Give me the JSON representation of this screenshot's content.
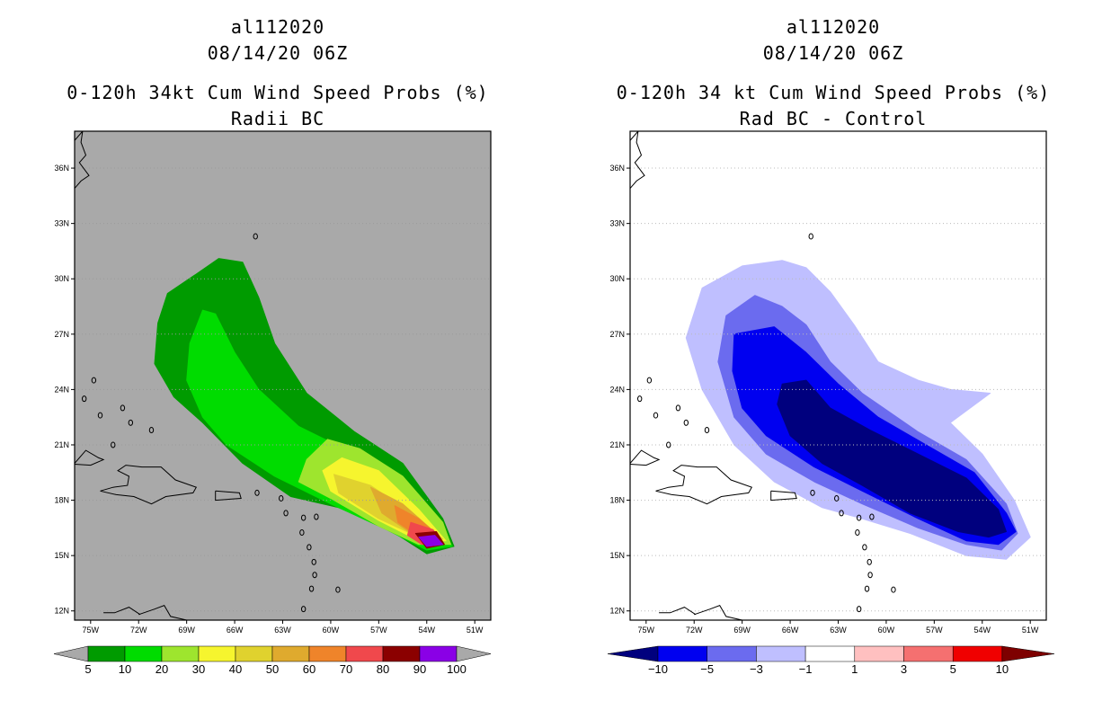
{
  "left": {
    "storm_id": "al112020",
    "datetime": "08/14/20 06Z",
    "title": "0-120h 34kt Cum Wind Speed Probs (%)",
    "subtitle": "Radii BC",
    "background_color": "#a9a9a9",
    "colorbar": {
      "labels": [
        "5",
        "10",
        "20",
        "30",
        "40",
        "50",
        "60",
        "70",
        "80",
        "90",
        "100"
      ],
      "colors": [
        "#009b00",
        "#00dc00",
        "#9ee52e",
        "#f6f52e",
        "#e0d22e",
        "#dfaa2e",
        "#ef842a",
        "#f0484c",
        "#8b0000",
        "#8a00e6"
      ],
      "extend_color": "#a9a9a9"
    }
  },
  "right": {
    "storm_id": "al112020",
    "datetime": "08/14/20 06Z",
    "title": "0-120h 34 kt Cum Wind Speed Probs (%)",
    "subtitle": "Rad BC - Control",
    "background_color": "#ffffff",
    "colorbar": {
      "labels": [
        "-10",
        "-5",
        "-3",
        "-1",
        "1",
        "3",
        "5",
        "10"
      ],
      "colors": [
        "#0000f0",
        "#6b6bef",
        "#bfbfff",
        "#ffffff",
        "#ffc0c0",
        "#f57070",
        "#f00000"
      ],
      "extend_low_color": "#00007e",
      "extend_high_color": "#7e0000"
    }
  },
  "axes": {
    "lon_labels": [
      "75W",
      "72W",
      "69W",
      "66W",
      "63W",
      "60W",
      "57W",
      "54W",
      "51W"
    ],
    "lat_labels": [
      "36N",
      "33N",
      "30N",
      "27N",
      "24N",
      "21N",
      "18N",
      "15N",
      "12N"
    ],
    "lon_range": [
      -76,
      -50
    ],
    "lat_range": [
      11.5,
      38
    ]
  },
  "chart_data": [
    {
      "type": "heatmap",
      "title": "0-120h 34kt Cum Wind Speed Probs (%)",
      "subtitle": "Radii BC",
      "levels": [
        5,
        10,
        20,
        30,
        40,
        50,
        60,
        70,
        80,
        90,
        100
      ],
      "contours": [
        {
          "level": 5,
          "lon_lat": [
            [
              -68.5,
              30.2
            ],
            [
              -67.0,
              31.1
            ],
            [
              -65.5,
              30.9
            ],
            [
              -64.5,
              29.0
            ],
            [
              -63.5,
              26.5
            ],
            [
              -61.5,
              23.8
            ],
            [
              -58.5,
              21.7
            ],
            [
              -55.5,
              20.0
            ],
            [
              -53.0,
              17.0
            ],
            [
              -52.3,
              15.5
            ],
            [
              -54.0,
              15.1
            ],
            [
              -56.5,
              16.5
            ],
            [
              -59.5,
              17.6
            ],
            [
              -62.5,
              18.2
            ],
            [
              -65.5,
              20.0
            ],
            [
              -68.0,
              22.2
            ],
            [
              -69.8,
              23.6
            ],
            [
              -71.0,
              25.4
            ],
            [
              -70.8,
              27.6
            ],
            [
              -70.2,
              29.2
            ]
          ]
        },
        {
          "level": 10,
          "lon_lat": [
            [
              -68.0,
              28.3
            ],
            [
              -67.2,
              28.1
            ],
            [
              -66.0,
              26.0
            ],
            [
              -64.5,
              24.0
            ],
            [
              -62.0,
              22.0
            ],
            [
              -58.5,
              20.5
            ],
            [
              -55.5,
              18.7
            ],
            [
              -53.0,
              16.4
            ],
            [
              -52.4,
              15.5
            ],
            [
              -54.0,
              15.3
            ],
            [
              -56.5,
              16.4
            ],
            [
              -60.0,
              17.8
            ],
            [
              -63.5,
              19.3
            ],
            [
              -66.5,
              21.0
            ],
            [
              -68.0,
              22.5
            ],
            [
              -69.0,
              24.5
            ],
            [
              -68.8,
              26.5
            ]
          ]
        },
        {
          "level": 20,
          "lon_lat": [
            [
              -60.2,
              21.3
            ],
            [
              -58.2,
              20.8
            ],
            [
              -55.5,
              19.3
            ],
            [
              -53.0,
              16.8
            ],
            [
              -52.5,
              15.6
            ],
            [
              -54.5,
              15.6
            ],
            [
              -57.0,
              16.6
            ],
            [
              -60.0,
              18.1
            ],
            [
              -62.0,
              19.0
            ],
            [
              -61.5,
              20.2
            ]
          ]
        },
        {
          "level": 30,
          "lon_lat": [
            [
              -59.3,
              20.3
            ],
            [
              -57.0,
              19.6
            ],
            [
              -54.5,
              17.5
            ],
            [
              -52.8,
              15.8
            ],
            [
              -54.5,
              15.8
            ],
            [
              -57.0,
              16.9
            ],
            [
              -60.0,
              18.5
            ],
            [
              -60.5,
              19.6
            ]
          ]
        },
        {
          "level": 40,
          "lon_lat": [
            [
              -59.8,
              19.4
            ],
            [
              -57.5,
              18.8
            ],
            [
              -55.0,
              17.3
            ],
            [
              -53.0,
              15.9
            ],
            [
              -54.5,
              16.0
            ],
            [
              -57.0,
              17.0
            ],
            [
              -59.5,
              18.4
            ]
          ]
        },
        {
          "level": 50,
          "lon_lat": [
            [
              -57.5,
              18.7
            ],
            [
              -55.5,
              17.8
            ],
            [
              -53.8,
              16.5
            ],
            [
              -53.2,
              15.9
            ],
            [
              -54.8,
              16.1
            ],
            [
              -56.8,
              17.3
            ]
          ]
        },
        {
          "level": 60,
          "lon_lat": [
            [
              -56.0,
              17.7
            ],
            [
              -54.5,
              17.0
            ],
            [
              -53.3,
              16.1
            ],
            [
              -54.5,
              16.0
            ],
            [
              -55.8,
              16.8
            ]
          ]
        },
        {
          "level": 70,
          "lon_lat": [
            [
              -55.0,
              16.8
            ],
            [
              -53.6,
              16.4
            ],
            [
              -53.1,
              15.8
            ],
            [
              -54.3,
              15.6
            ],
            [
              -55.2,
              16.1
            ]
          ]
        },
        {
          "level": 80,
          "lon_lat": [
            [
              -54.7,
              16.2
            ],
            [
              -53.4,
              16.3
            ],
            [
              -52.9,
              15.6
            ],
            [
              -54.0,
              15.4
            ]
          ]
        },
        {
          "level": 90,
          "lon_lat": [
            [
              -54.5,
              16.0
            ],
            [
              -53.5,
              16.1
            ],
            [
              -53.0,
              15.6
            ],
            [
              -54.0,
              15.5
            ]
          ]
        },
        {
          "level": 100,
          "lon_lat": [
            [
              -54.3,
              15.95
            ],
            [
              -53.5,
              16.0
            ],
            [
              -53.1,
              15.6
            ],
            [
              -54.0,
              15.5
            ]
          ]
        }
      ]
    },
    {
      "type": "heatmap",
      "title": "0-120h 34 kt Cum Wind Speed Probs (%)",
      "subtitle": "Rad BC - Control",
      "levels": [
        -10,
        -5,
        -3,
        -1,
        1,
        3,
        5,
        10
      ],
      "contours": [
        {
          "level": -1,
          "lon_lat": [
            [
              -71.5,
              29.5
            ],
            [
              -69.0,
              30.7
            ],
            [
              -66.5,
              31.0
            ],
            [
              -65.0,
              30.6
            ],
            [
              -63.5,
              29.3
            ],
            [
              -62.0,
              27.5
            ],
            [
              -60.5,
              25.5
            ],
            [
              -58.0,
              24.5
            ],
            [
              -56.0,
              24.0
            ],
            [
              -53.5,
              23.8
            ],
            [
              -56.0,
              22.2
            ],
            [
              -54.0,
              20.5
            ],
            [
              -52.0,
              18.0
            ],
            [
              -51.0,
              16.0
            ],
            [
              -52.5,
              14.8
            ],
            [
              -55.0,
              15.0
            ],
            [
              -58.5,
              16.2
            ],
            [
              -61.5,
              17.0
            ],
            [
              -64.0,
              17.6
            ],
            [
              -67.0,
              19.0
            ],
            [
              -69.5,
              21.0
            ],
            [
              -71.5,
              24.0
            ],
            [
              -72.5,
              26.8
            ]
          ]
        },
        {
          "level": -3,
          "lon_lat": [
            [
              -70.0,
              28.0
            ],
            [
              -68.2,
              29.1
            ],
            [
              -66.5,
              28.5
            ],
            [
              -65.0,
              27.5
            ],
            [
              -63.5,
              25.5
            ],
            [
              -61.5,
              23.8
            ],
            [
              -58.0,
              21.7
            ],
            [
              -55.0,
              20.2
            ],
            [
              -52.5,
              17.8
            ],
            [
              -51.8,
              16.2
            ],
            [
              -52.8,
              15.3
            ],
            [
              -55.0,
              15.6
            ],
            [
              -58.0,
              16.5
            ],
            [
              -61.5,
              17.8
            ],
            [
              -64.5,
              19.0
            ],
            [
              -67.5,
              20.5
            ],
            [
              -69.5,
              22.5
            ],
            [
              -70.5,
              25.5
            ]
          ]
        },
        {
          "level": -5,
          "lon_lat": [
            [
              -69.5,
              27.0
            ],
            [
              -67.0,
              27.4
            ],
            [
              -65.0,
              26.0
            ],
            [
              -63.0,
              24.3
            ],
            [
              -60.5,
              22.5
            ],
            [
              -57.5,
              21.0
            ],
            [
              -54.5,
              19.5
            ],
            [
              -52.5,
              17.3
            ],
            [
              -51.9,
              16.3
            ],
            [
              -53.0,
              15.6
            ],
            [
              -55.0,
              15.8
            ],
            [
              -58.0,
              17.0
            ],
            [
              -61.5,
              18.5
            ],
            [
              -64.5,
              19.8
            ],
            [
              -67.5,
              21.5
            ],
            [
              -69.0,
              23.0
            ],
            [
              -69.6,
              25.0
            ]
          ]
        },
        {
          "level": -10,
          "lon_lat": [
            [
              -66.5,
              24.3
            ],
            [
              -65.0,
              24.5
            ],
            [
              -63.5,
              23.0
            ],
            [
              -61.0,
              21.8
            ],
            [
              -58.0,
              20.5
            ],
            [
              -55.0,
              19.2
            ],
            [
              -53.0,
              17.5
            ],
            [
              -52.5,
              16.3
            ],
            [
              -53.6,
              16.0
            ],
            [
              -55.5,
              16.3
            ],
            [
              -58.5,
              17.3
            ],
            [
              -61.5,
              18.8
            ],
            [
              -64.0,
              20.0
            ],
            [
              -66.0,
              21.5
            ],
            [
              -66.8,
              23.2
            ]
          ]
        }
      ]
    }
  ]
}
